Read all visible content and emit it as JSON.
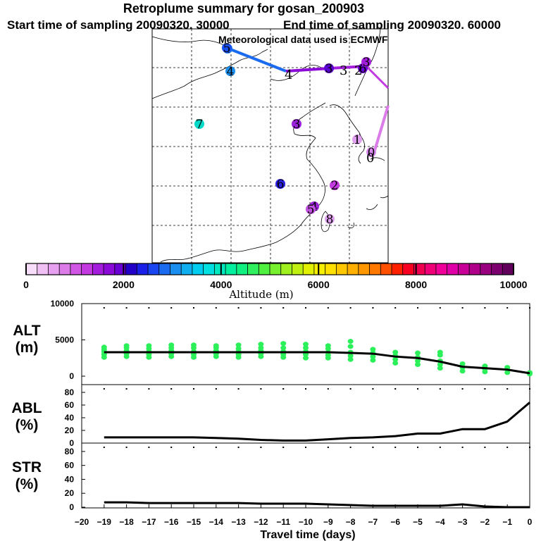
{
  "title": "Retroplume summary for gosan_200903",
  "subtitle_start": "Start time of sampling 20090320. 30000",
  "subtitle_end": "End time of sampling 20090320. 60000",
  "met_text": "Meteorological data used is ECMWF",
  "colorbar": {
    "label": "Altitude (m)",
    "ticks": [
      "0",
      "2000",
      "4000",
      "6000",
      "8000",
      "10000"
    ],
    "colors": [
      "#f7ddf9",
      "#f0c0f4",
      "#e79ff0",
      "#dc7ce9",
      "#cf57e3",
      "#c23ae0",
      "#a41ddc",
      "#8c0ad8",
      "#6a00d4",
      "#2200c8",
      "#1a20e8",
      "#1845f0",
      "#1a6bf0",
      "#1a8ff0",
      "#10b0f0",
      "#00cdf0",
      "#00e0e0",
      "#00e8bf",
      "#00f0a0",
      "#10f080",
      "#30f060",
      "#50f040",
      "#78f030",
      "#a0f020",
      "#c0f010",
      "#e0f000",
      "#f6f000",
      "#ffe000",
      "#ffc800",
      "#ffb000",
      "#ff9800",
      "#ff7800",
      "#ff5000",
      "#ff2000",
      "#f80020",
      "#f00050",
      "#f00078",
      "#f00098",
      "#e000a8",
      "#c80098",
      "#b0008a",
      "#980080",
      "#7c0070",
      "#60005c"
    ]
  },
  "map": {
    "markers": [
      {
        "label": "1",
        "color": "#1a7ff0"
      },
      {
        "label": "3",
        "color": "#5a00d0"
      },
      {
        "label": "4",
        "color": "#1a8ff0"
      },
      {
        "label": "7",
        "color": "#00d8c8"
      },
      {
        "label": "3",
        "color": "#9a22d8"
      },
      {
        "label": "1",
        "color": "#e0a0f0"
      },
      {
        "label": "0",
        "color": "#d98aee"
      },
      {
        "label": "6",
        "color": "#2a20e0"
      },
      {
        "label": "2",
        "color": "#c23ae0"
      },
      {
        "label": "4",
        "color": "#9a22d8"
      },
      {
        "label": "8",
        "color": "#e0a0f0"
      },
      {
        "label": "5",
        "color": "#1a50f0"
      },
      {
        "label": "5",
        "color": "#c050e0"
      },
      {
        "label": "6",
        "color": "#6a00d4"
      },
      {
        "label": "3",
        "color": "#a41ddc"
      }
    ],
    "labels": [
      {
        "text": "4"
      },
      {
        "text": "3"
      },
      {
        "text": "2"
      },
      {
        "text": "0"
      }
    ]
  },
  "chart_data": [
    {
      "type": "scatter+line",
      "panel": "ALT",
      "ylabel": "ALT (m)",
      "x": [
        -19,
        -18,
        -17,
        -16,
        -15,
        -14,
        -13,
        -12,
        -11,
        -10,
        -9,
        -8,
        -7,
        -6,
        -5,
        -4,
        -3,
        -2,
        -1,
        0
      ],
      "ylim": [
        0,
        10000
      ],
      "yticks": [
        0,
        5000,
        10000
      ],
      "series": [
        {
          "name": "mean altitude",
          "values": [
            3300,
            3300,
            3300,
            3300,
            3300,
            3300,
            3300,
            3300,
            3300,
            3300,
            3300,
            3200,
            3100,
            2700,
            2500,
            2000,
            1300,
            1100,
            900,
            400
          ]
        }
      ],
      "scatter_clusters": [
        {
          "x": -19,
          "values": [
            2600,
            3000,
            3400,
            3700,
            4000
          ]
        },
        {
          "x": -18,
          "values": [
            2700,
            3100,
            3500,
            3900,
            4200
          ]
        },
        {
          "x": -17,
          "values": [
            2600,
            3000,
            3400,
            3800,
            4200
          ]
        },
        {
          "x": -16,
          "values": [
            2700,
            3100,
            3500,
            3900,
            4300
          ]
        },
        {
          "x": -15,
          "values": [
            2600,
            3000,
            3400,
            3900,
            4300
          ]
        },
        {
          "x": -14,
          "values": [
            2700,
            3100,
            3500,
            3900,
            4200
          ]
        },
        {
          "x": -13,
          "values": [
            2600,
            3000,
            3400,
            3800,
            4300
          ]
        },
        {
          "x": -12,
          "values": [
            2700,
            3100,
            3500,
            3900,
            4400
          ]
        },
        {
          "x": -11,
          "values": [
            2600,
            3000,
            3400,
            3900,
            4500
          ]
        },
        {
          "x": -10,
          "values": [
            2500,
            3000,
            3400,
            3900,
            4400
          ]
        },
        {
          "x": -9,
          "values": [
            2500,
            2900,
            3300,
            3800,
            4200
          ]
        },
        {
          "x": -8,
          "values": [
            2300,
            2800,
            3300,
            4100,
            4800
          ]
        },
        {
          "x": -7,
          "values": [
            2200,
            2700,
            3200,
            3700
          ]
        },
        {
          "x": -6,
          "values": [
            1800,
            2300,
            2800,
            3300
          ]
        },
        {
          "x": -5,
          "values": [
            1600,
            2100,
            2600,
            3200
          ]
        },
        {
          "x": -4,
          "values": [
            1100,
            1600,
            2100,
            2900,
            3300
          ]
        },
        {
          "x": -3,
          "values": [
            700,
            1200,
            1700
          ]
        },
        {
          "x": -2,
          "values": [
            600,
            1000,
            1400
          ]
        },
        {
          "x": -1,
          "values": [
            500,
            900,
            1200
          ]
        },
        {
          "x": 0,
          "values": [
            300,
            500
          ]
        }
      ]
    },
    {
      "type": "line",
      "panel": "ABL",
      "ylabel": "ABL (%)",
      "x": [
        -19,
        -18,
        -17,
        -16,
        -15,
        -14,
        -13,
        -12,
        -11,
        -10,
        -9,
        -8,
        -7,
        -6,
        -5,
        -4,
        -3,
        -2,
        -1,
        0
      ],
      "ylim": [
        0,
        90
      ],
      "yticks": [
        0,
        20,
        40,
        60,
        80
      ],
      "series": [
        {
          "name": "ABL fraction",
          "values": [
            9,
            9,
            9,
            9,
            9,
            8,
            7,
            5,
            4,
            4,
            6,
            8,
            9,
            11,
            15,
            15,
            22,
            22,
            34,
            64
          ]
        }
      ]
    },
    {
      "type": "line",
      "panel": "STR",
      "ylabel": "STR (%)",
      "x": [
        -19,
        -18,
        -17,
        -16,
        -15,
        -14,
        -13,
        -12,
        -11,
        -10,
        -9,
        -8,
        -7,
        -6,
        -5,
        -4,
        -3,
        -2,
        -1,
        0
      ],
      "ylim": [
        0,
        90
      ],
      "yticks": [
        0,
        20,
        40,
        60,
        80
      ],
      "series": [
        {
          "name": "stratospheric fraction",
          "values": [
            7,
            7,
            6,
            6,
            6,
            6,
            6,
            5,
            5,
            5,
            4,
            3,
            2,
            2,
            2,
            2,
            4,
            1,
            0,
            0
          ]
        }
      ]
    }
  ],
  "xaxis": {
    "label": "Travel time (days)",
    "ticks": [
      "−20",
      "−19",
      "−18",
      "−17",
      "−16",
      "−15",
      "−14",
      "−13",
      "−12",
      "−11",
      "−10",
      "−9",
      "−8",
      "−7",
      "−6",
      "−5",
      "−4",
      "−3",
      "−2",
      "−1",
      "0"
    ]
  },
  "panel_labels": {
    "alt": {
      "line1": "ALT",
      "line2": "(m)"
    },
    "abl": {
      "line1": "ABL",
      "line2": "(%)"
    },
    "str": {
      "line1": "STR",
      "line2": "(%)"
    }
  },
  "ytick_labels": {
    "alt": [
      "0",
      "5000",
      "10000"
    ],
    "pct": [
      "0",
      "20",
      "40",
      "60",
      "80"
    ]
  },
  "colors": {
    "scatter": "#2cf05a",
    "line": "#000000",
    "track_blue": "#1a6bf0",
    "track_purple": "#8c0ad8",
    "track_magenta": "#c23ae0",
    "track_pink": "#dc7ce9"
  }
}
